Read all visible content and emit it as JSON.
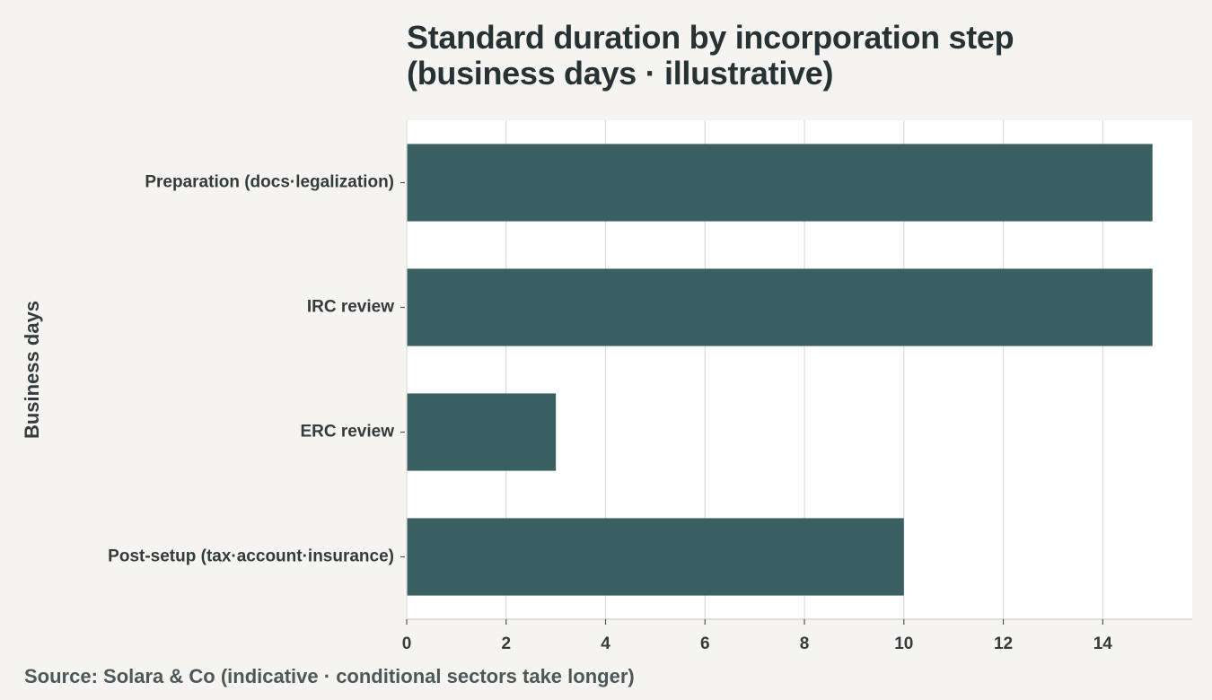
{
  "chart": {
    "title_line1": "Standard duration by incorporation step",
    "title_line2": "(business days · illustrative)",
    "y_axis_label": "Business days",
    "source": "Source: Solara & Co (indicative · conditional sectors take longer)"
  },
  "colors": {
    "bar": "#3a5f60",
    "plot_background": "#ffffff",
    "page_background": "#f5f4f0",
    "grid": "#dcdcdc"
  },
  "chart_data": {
    "type": "bar",
    "orientation": "horizontal",
    "title": "Standard duration by incorporation step (business days · illustrative)",
    "xlabel": "",
    "ylabel": "Business days",
    "categories": [
      "Preparation (docs·legalization)",
      "IRC review",
      "ERC review",
      "Post-setup (tax·account·insurance)"
    ],
    "values": [
      15,
      15,
      3,
      10
    ],
    "xlim": [
      0,
      15.8
    ],
    "xticks": [
      0,
      2,
      4,
      6,
      8,
      10,
      12,
      14
    ],
    "grid": "vertical",
    "legend": "none"
  }
}
